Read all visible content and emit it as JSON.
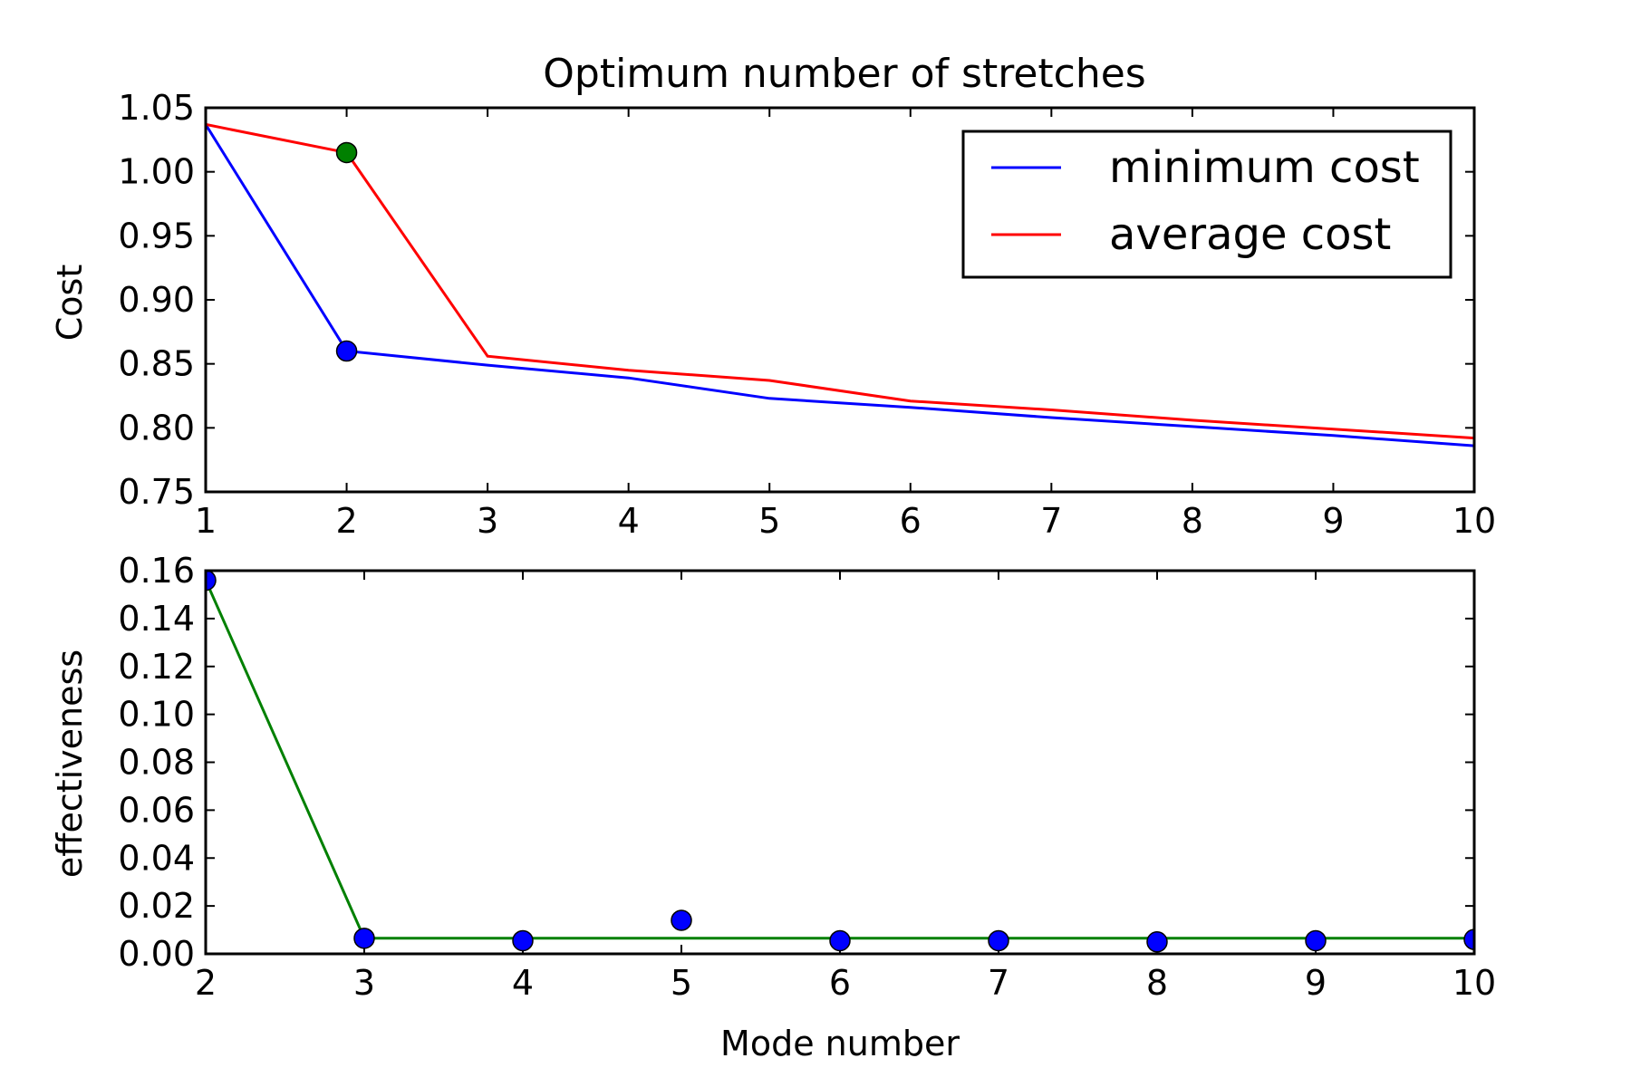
{
  "chart_data": [
    {
      "type": "line",
      "title": "Optimum number of stretches",
      "xlabel": "",
      "ylabel": "Cost",
      "xlim": [
        1,
        10
      ],
      "ylim": [
        0.75,
        1.05
      ],
      "x_ticks": [
        "1",
        "2",
        "3",
        "4",
        "5",
        "6",
        "7",
        "8",
        "9",
        "10"
      ],
      "y_ticks": [
        "0.75",
        "0.80",
        "0.85",
        "0.90",
        "0.95",
        "1.00",
        "1.05"
      ],
      "grid": false,
      "legend_position": "top-right",
      "series": [
        {
          "name": "minimum cost",
          "color": "#0000ff",
          "x": [
            1,
            2,
            3,
            4,
            5,
            6,
            7,
            8,
            9,
            10
          ],
          "y": [
            1.037,
            0.86,
            0.849,
            0.839,
            0.823,
            0.816,
            0.808,
            0.801,
            0.794,
            0.786
          ]
        },
        {
          "name": "average cost",
          "color": "#ff0000",
          "x": [
            1,
            2,
            3,
            4,
            5,
            6,
            7,
            8,
            9,
            10
          ],
          "y": [
            1.037,
            1.015,
            0.856,
            0.845,
            0.837,
            0.821,
            0.814,
            0.806,
            0.799,
            0.792
          ]
        }
      ],
      "markers": [
        {
          "x": 2,
          "y": 0.86,
          "color": "#0000ff"
        },
        {
          "x": 2,
          "y": 1.015,
          "color": "#008000"
        }
      ]
    },
    {
      "type": "line",
      "title": "",
      "xlabel": "Mode number",
      "ylabel": "effectiveness",
      "xlim": [
        2,
        10
      ],
      "ylim": [
        0.0,
        0.16
      ],
      "x_ticks": [
        "2",
        "3",
        "4",
        "5",
        "6",
        "7",
        "8",
        "9",
        "10"
      ],
      "y_ticks": [
        "0.00",
        "0.02",
        "0.04",
        "0.06",
        "0.08",
        "0.10",
        "0.12",
        "0.14",
        "0.16"
      ],
      "grid": false,
      "series": [
        {
          "color": "#008000",
          "x": [
            2,
            3,
            4,
            5,
            6,
            7,
            8,
            9,
            10
          ],
          "y": [
            0.156,
            0.0065,
            0.0065,
            0.0065,
            0.0065,
            0.0065,
            0.0065,
            0.0065,
            0.0065
          ]
        }
      ],
      "scatter": {
        "color": "#0000ff",
        "x": [
          2,
          3,
          4,
          5,
          6,
          7,
          8,
          9,
          10
        ],
        "y": [
          0.156,
          0.0065,
          0.0055,
          0.014,
          0.0055,
          0.0055,
          0.005,
          0.0055,
          0.006
        ]
      }
    }
  ]
}
